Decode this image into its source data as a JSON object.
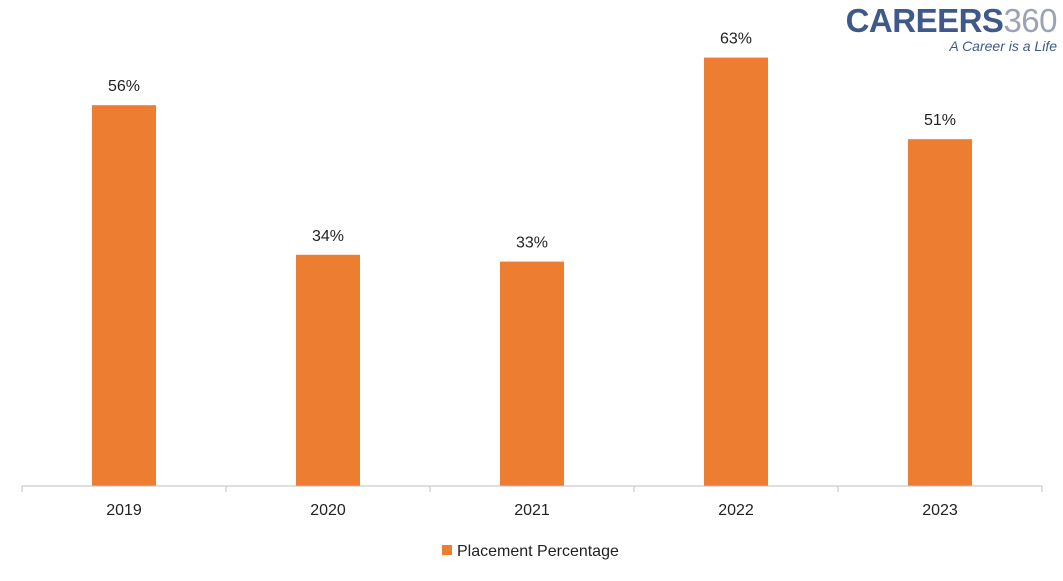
{
  "logo": {
    "brand": "CAREERS",
    "number": "360",
    "tagline": "A Career is a Life"
  },
  "colors": {
    "bar": "#ed7d31",
    "axis": "#bfbfbf",
    "text": "#222222"
  },
  "chart_data": {
    "type": "bar",
    "categories": [
      "2019",
      "2020",
      "2021",
      "2022",
      "2023"
    ],
    "series": [
      {
        "name": "Placement Percentage",
        "values": [
          56,
          34,
          33,
          63,
          51
        ]
      }
    ],
    "data_labels": [
      "56%",
      "34%",
      "33%",
      "63%",
      "51%"
    ],
    "ylim": [
      0,
      70
    ],
    "grid": false,
    "legend": "bottom"
  }
}
